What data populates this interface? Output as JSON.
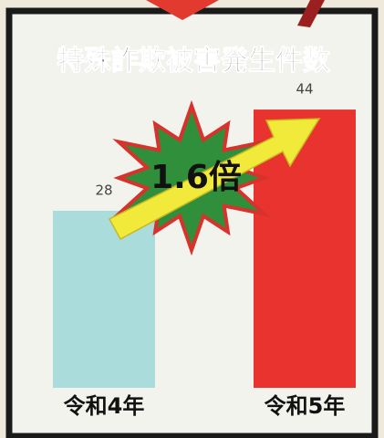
{
  "chart_data": {
    "type": "bar",
    "title": "特殊詐欺被害発生件数",
    "categories": [
      "令和4年",
      "令和5年"
    ],
    "values": [
      28,
      44
    ],
    "colors": [
      "#a9dcdb",
      "#e8332e"
    ],
    "annotation": "1.6倍"
  }
}
